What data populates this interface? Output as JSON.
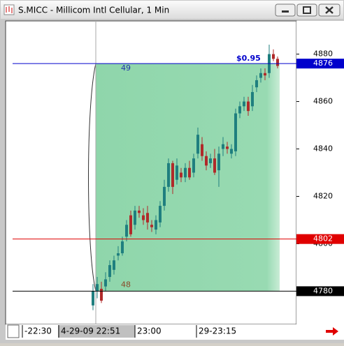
{
  "chart_data": {
    "type": "candlestick",
    "title": "S.MICC - Millicom Intl Cellular, 1 Min",
    "ylim": [
      4766,
      4894
    ],
    "yticks": [
      4780,
      4800,
      4820,
      4840,
      4860,
      4880
    ],
    "up_color": "#1f7f7f",
    "down_color": "#b02a2a",
    "open": [
      4774,
      4780,
      4781,
      4782,
      4786,
      4789,
      4795,
      4796,
      4803,
      4812,
      4808,
      4814,
      4812,
      4813,
      4808,
      4806,
      4809,
      4816,
      4824,
      4834,
      4827,
      4830,
      4828,
      4832,
      4830,
      4838,
      4842,
      4837,
      4834,
      4836,
      4831,
      4840,
      4841,
      4838,
      4839,
      4855,
      4858,
      4860,
      4858,
      4866,
      4870,
      4872,
      4872,
      4880,
      4878
    ],
    "high": [
      4783,
      4786,
      4784,
      4788,
      4793,
      4795,
      4799,
      4803,
      4810,
      4814,
      4816,
      4816,
      4815,
      4816,
      4810,
      4812,
      4818,
      4827,
      4836,
      4835,
      4836,
      4832,
      4834,
      4835,
      4838,
      4849,
      4845,
      4839,
      4838,
      4840,
      4841,
      4845,
      4843,
      4842,
      4857,
      4860,
      4862,
      4862,
      4867,
      4871,
      4874,
      4874,
      4884,
      4882,
      4879
    ],
    "low": [
      4772,
      4777,
      4775,
      4780,
      4784,
      4787,
      4793,
      4795,
      4801,
      4803,
      4806,
      4811,
      4808,
      4806,
      4805,
      4804,
      4807,
      4814,
      4822,
      4821,
      4825,
      4826,
      4826,
      4827,
      4828,
      4836,
      4835,
      4831,
      4832,
      4829,
      4824,
      4837,
      4838,
      4836,
      4837,
      4853,
      4856,
      4854,
      4856,
      4864,
      4868,
      4869,
      4870,
      4877,
      4874
    ],
    "close": [
      4780,
      4783,
      4776,
      4785,
      4791,
      4793,
      4796,
      4801,
      4808,
      4804,
      4814,
      4813,
      4810,
      4809,
      4807,
      4810,
      4816,
      4824,
      4834,
      4824,
      4833,
      4828,
      4832,
      4828,
      4836,
      4846,
      4837,
      4833,
      4836,
      4830,
      4838,
      4842,
      4840,
      4840,
      4855,
      4858,
      4860,
      4856,
      4864,
      4869,
      4872,
      4871,
      4880,
      4878,
      4875
    ],
    "levels": [
      {
        "value": 4876,
        "color": "#0000cc"
      },
      {
        "value": 4802,
        "color": "#e00000"
      },
      {
        "value": 4780,
        "color": "#000000"
      }
    ],
    "zone_labels": [
      "49",
      "48",
      "$0.95"
    ],
    "time_labels": [
      "-22:30",
      "4-29-09 22:51",
      "23:00",
      "29-23:15"
    ]
  }
}
